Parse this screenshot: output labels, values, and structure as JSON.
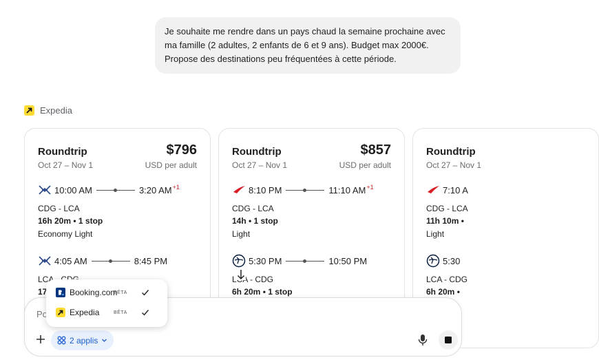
{
  "user_message": "Je souhaite me rendre dans un pays chaud la semaine prochaine avec ma famille (2 adultes, 2 enfants de 6 et 9 ans). Budget max 2000€. Propose des destinations peu fréquentées à cette période.",
  "source": {
    "name": "Expedia"
  },
  "cards": [
    {
      "trip": "Roundtrip",
      "price": "$796",
      "dates": "Oct 27 – Nov 1",
      "price_note": "USD per adult",
      "outbound_airline": "a3",
      "return_airline": "a3",
      "outbound": {
        "depart": "10:00 AM",
        "arrive": "3:20 AM",
        "day_offset": "+1",
        "route": "CDG - LCA",
        "duration": "16h 20m • 1 stop",
        "fare": "Economy Light"
      },
      "return": {
        "depart": "4:05 AM",
        "arrive": "8:45 PM",
        "route": "LCA - CDG",
        "duration": "17"
      }
    },
    {
      "trip": "Roundtrip",
      "price": "$857",
      "dates": "Oct 27 – Nov 1",
      "price_note": "USD per adult",
      "outbound_airline": "os",
      "return_airline": "lh",
      "outbound": {
        "depart": "8:10 PM",
        "arrive": "11:10 AM",
        "day_offset": "+1",
        "route": "CDG - LCA",
        "duration": "14h • 1 stop",
        "fare": "Light"
      },
      "return": {
        "depart": "5:30 PM",
        "arrive": "10:50 PM",
        "route": "LCA - CDG",
        "duration": "6h 20m • 1 stop"
      }
    },
    {
      "trip": "Roundtrip",
      "dates": "Oct 27 – Nov 1",
      "outbound_airline": "os",
      "return_airline": "lh",
      "outbound": {
        "depart": "7:10 A",
        "route": "CDG - LCA",
        "duration": "11h 10m •",
        "fare": "Light"
      },
      "return": {
        "depart": "5:30",
        "route": "LCA - CDG",
        "duration": "6h 20m •"
      }
    }
  ],
  "apps_menu": {
    "items": [
      {
        "name": "Booking.com",
        "badge": "BÊTA"
      },
      {
        "name": "Expedia",
        "badge": "BÊTA"
      }
    ]
  },
  "composer": {
    "placeholder": "Po",
    "apps_button": "2 applis"
  }
}
